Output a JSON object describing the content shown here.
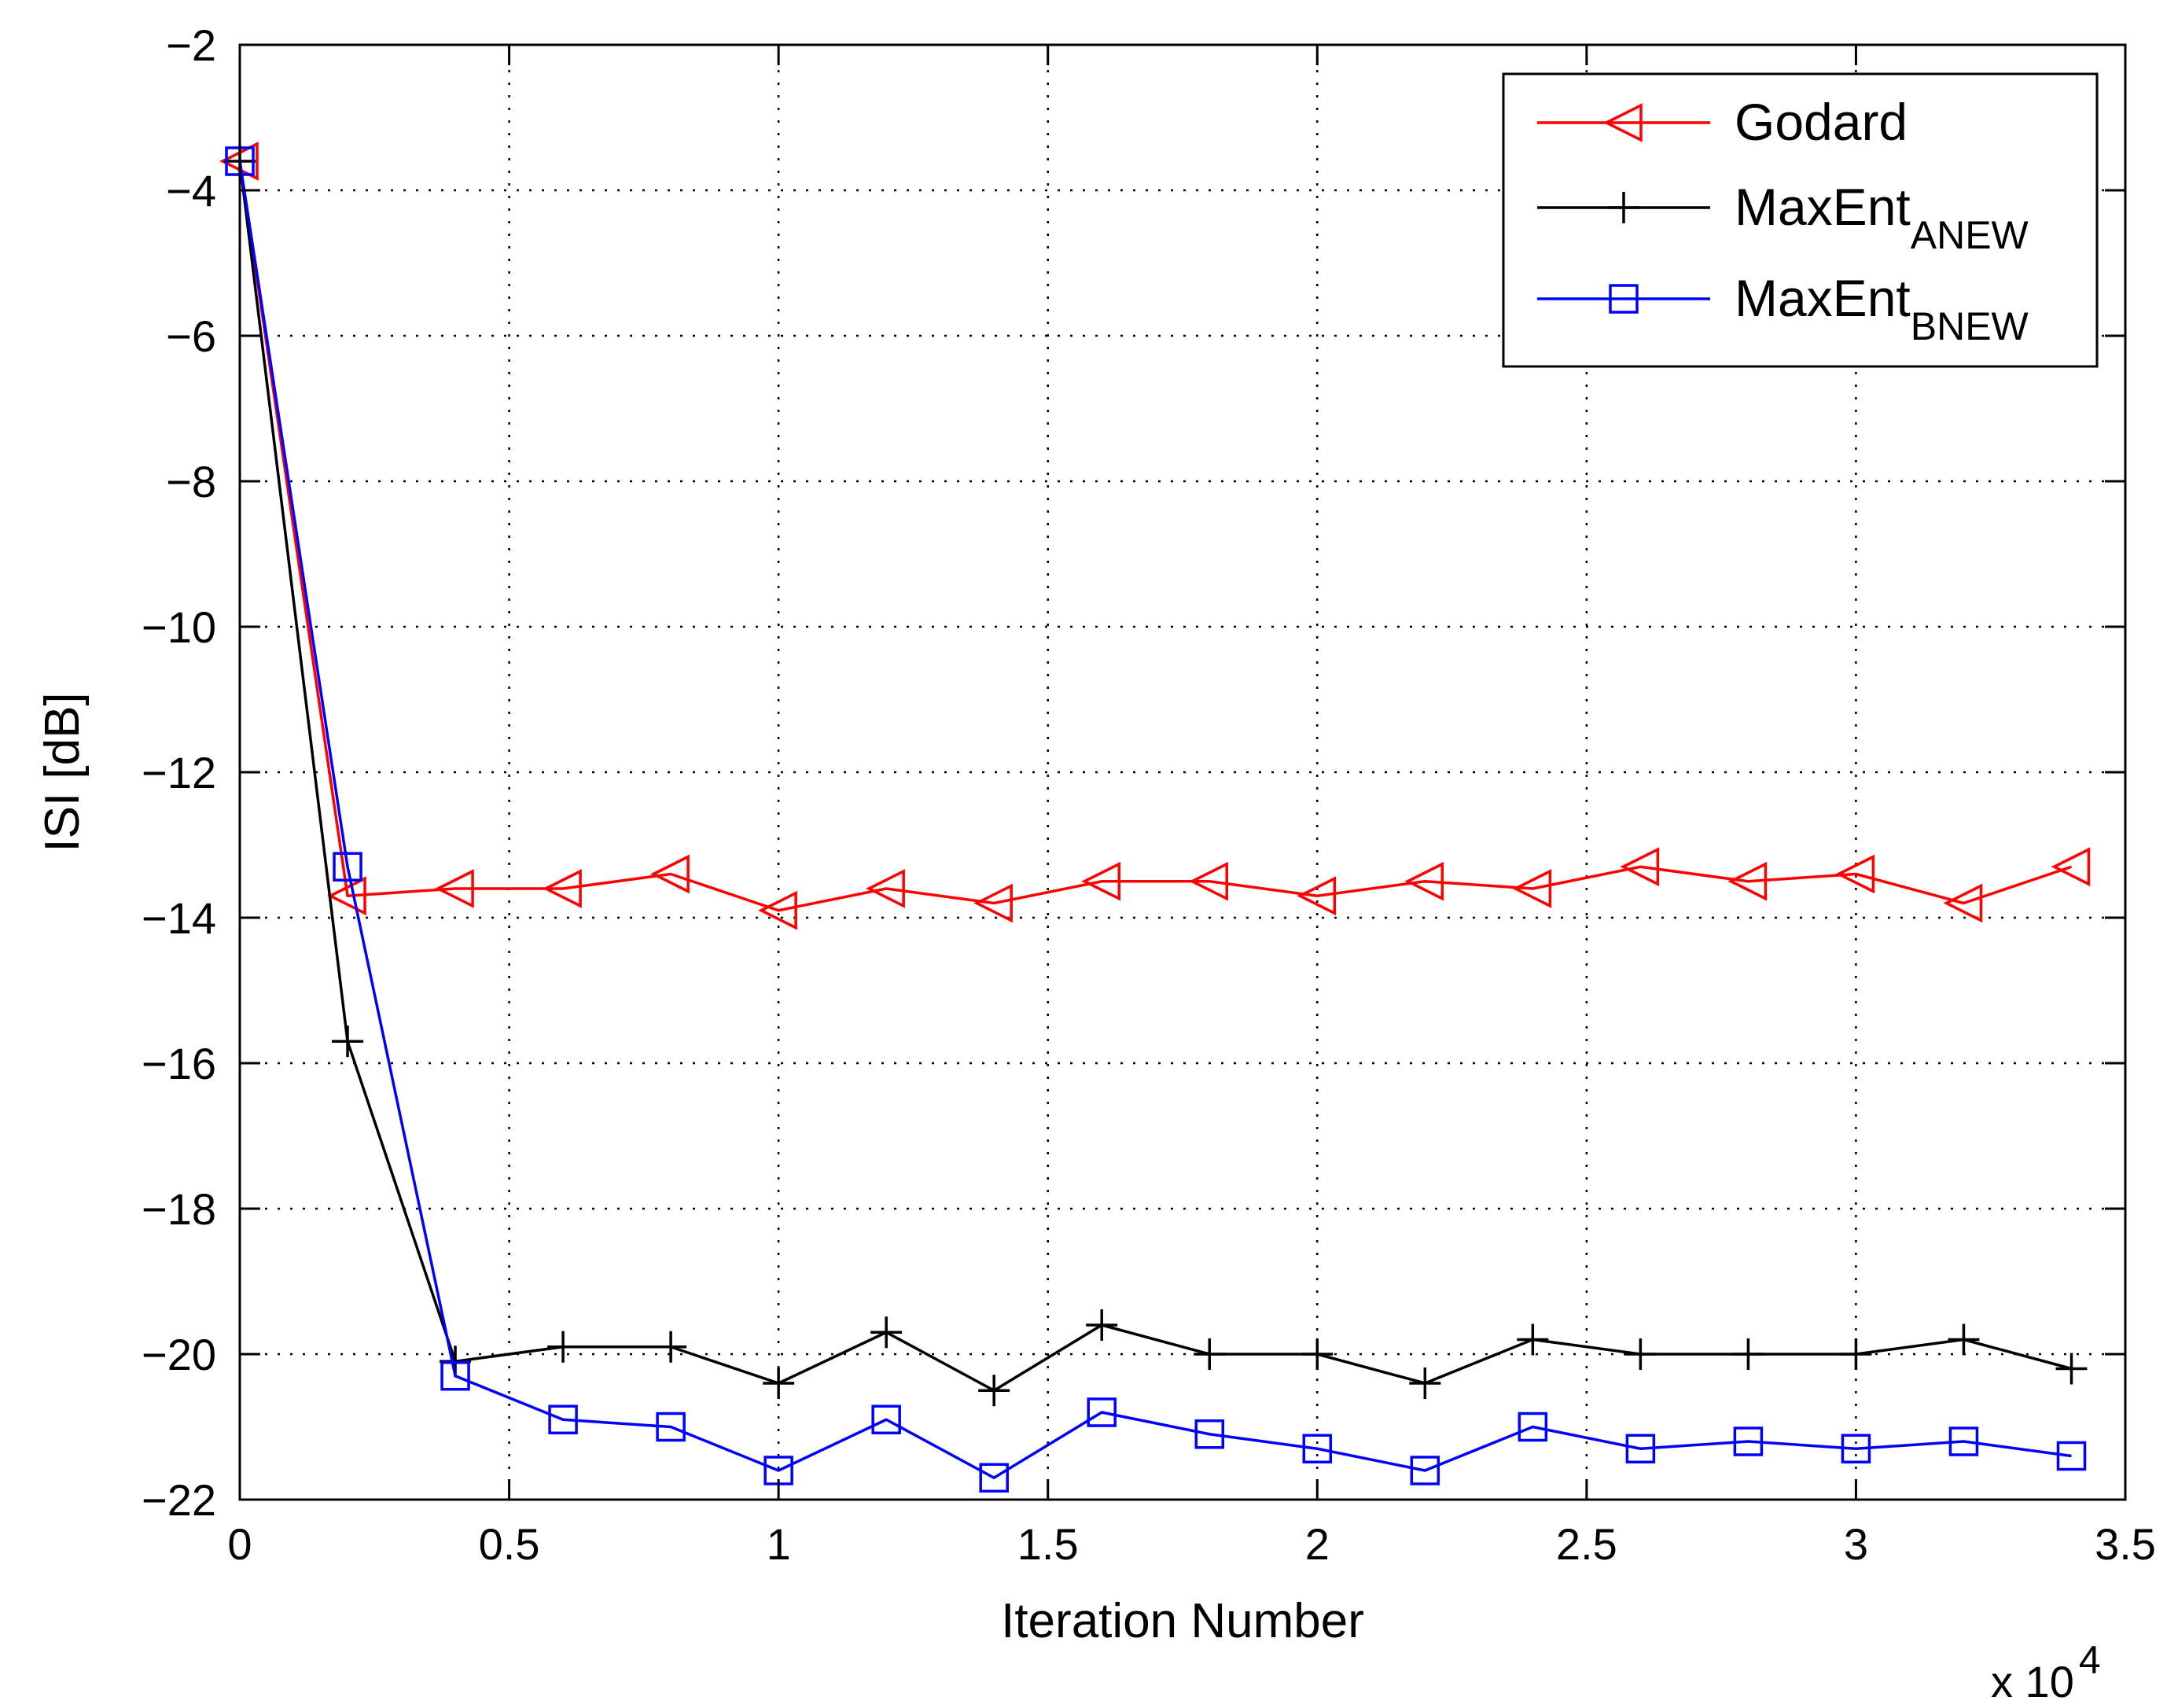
{
  "chart_data": {
    "type": "line",
    "xlabel": "Iteration Number",
    "ylabel": "ISI [dB]",
    "x_multiplier_base": "x 10",
    "x_multiplier_exp": "4",
    "xlim": [
      0,
      3.5
    ],
    "ylim": [
      -22,
      -2
    ],
    "xticks": [
      0,
      0.5,
      1,
      1.5,
      2,
      2.5,
      3,
      3.5
    ],
    "xtick_labels": [
      "0",
      "0.5",
      "1",
      "1.5",
      "2",
      "2.5",
      "3",
      "3.5"
    ],
    "yticks": [
      -22,
      -20,
      -18,
      -16,
      -14,
      -12,
      -10,
      -8,
      -6,
      -4,
      -2
    ],
    "ytick_labels": [
      "−22",
      "−20",
      "−18",
      "−16",
      "−14",
      "−12",
      "−10",
      "−8",
      "−6",
      "−4",
      "−2"
    ],
    "grid": true,
    "legend_position": "top-right",
    "x": [
      0,
      0.2,
      0.4,
      0.6,
      0.8,
      1.0,
      1.2,
      1.4,
      1.6,
      1.8,
      2.0,
      2.2,
      2.4,
      2.6,
      2.8,
      3.0,
      3.2,
      3.4
    ],
    "series": [
      {
        "name": "Godard",
        "name_sub": "",
        "color": "#ff0000",
        "marker": "triangle-left",
        "values": [
          -3.6,
          -13.7,
          -13.6,
          -13.6,
          -13.4,
          -13.9,
          -13.6,
          -13.8,
          -13.5,
          -13.5,
          -13.7,
          -13.5,
          -13.6,
          -13.3,
          -13.5,
          -13.4,
          -13.8,
          -13.3
        ]
      },
      {
        "name": "MaxEnt",
        "name_sub": "ANEW",
        "color": "#000000",
        "marker": "plus",
        "values": [
          -3.6,
          -15.7,
          -20.1,
          -19.9,
          -19.9,
          -20.4,
          -19.7,
          -20.5,
          -19.6,
          -20.0,
          -20.0,
          -20.4,
          -19.8,
          -20.0,
          -20.0,
          -20.0,
          -19.8,
          -20.2
        ]
      },
      {
        "name": "MaxEnt",
        "name_sub": "BNEW",
        "color": "#0000ff",
        "marker": "square",
        "values": [
          -3.6,
          -13.3,
          -20.3,
          -20.9,
          -21.0,
          -21.6,
          -20.9,
          -21.7,
          -20.8,
          -21.1,
          -21.3,
          -21.6,
          -21.0,
          -21.3,
          -21.2,
          -21.3,
          -21.2,
          -21.4
        ]
      }
    ]
  }
}
